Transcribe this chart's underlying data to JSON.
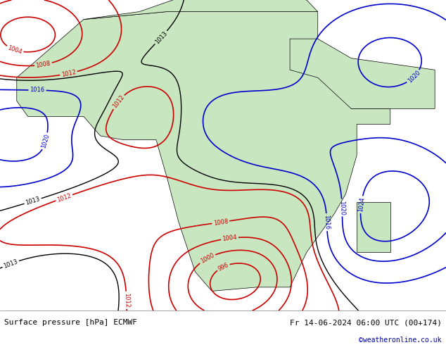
{
  "title_left": "Surface pressure [hPa] ECMWF",
  "title_right": "Fr 14-06-2024 06:00 UTC (00+174)",
  "credit": "©weatheronline.co.uk",
  "bg_color": "#d0d8e8",
  "land_color": "#c8e6c0",
  "fig_width": 6.34,
  "fig_height": 4.9,
  "dpi": 100,
  "bottom_bar_color": "#e8e8e8",
  "font_size_labels": 8,
  "font_size_credit": 8,
  "contour_blue_color": "#0000cc",
  "contour_red_color": "#cc0000",
  "contour_black_color": "#000000"
}
